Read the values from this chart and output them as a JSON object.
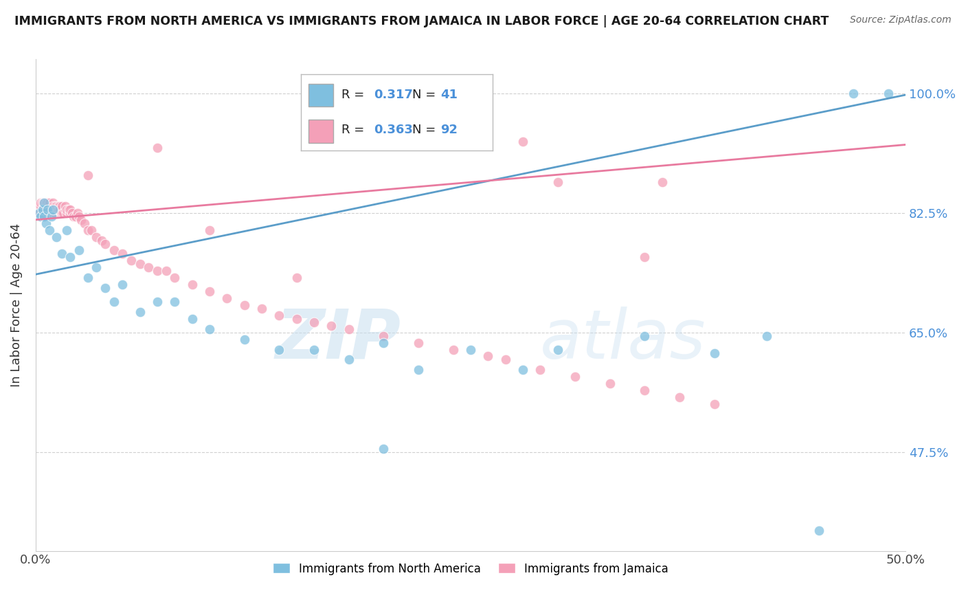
{
  "title": "IMMIGRANTS FROM NORTH AMERICA VS IMMIGRANTS FROM JAMAICA IN LABOR FORCE | AGE 20-64 CORRELATION CHART",
  "source": "Source: ZipAtlas.com",
  "ylabel": "In Labor Force | Age 20-64",
  "xlim": [
    0.0,
    0.5
  ],
  "ylim": [
    0.33,
    1.05
  ],
  "yticks": [
    0.475,
    0.65,
    0.825,
    1.0
  ],
  "ytick_labels": [
    "47.5%",
    "65.0%",
    "82.5%",
    "100.0%"
  ],
  "xticks": [
    0.0,
    0.1,
    0.2,
    0.3,
    0.4,
    0.5
  ],
  "xtick_labels": [
    "0.0%",
    "",
    "",
    "",
    "",
    "50.0%"
  ],
  "blue_R": 0.317,
  "blue_N": 41,
  "pink_R": 0.363,
  "pink_N": 92,
  "blue_color": "#7fbfdf",
  "pink_color": "#f4a0b8",
  "blue_line_color": "#5b9dc9",
  "pink_line_color": "#e87a9f",
  "legend_label_blue": "Immigrants from North America",
  "legend_label_pink": "Immigrants from Jamaica",
  "watermark_zip": "ZIP",
  "watermark_atlas": "atlas",
  "blue_line_x0": 0.0,
  "blue_line_y0": 0.735,
  "blue_line_x1": 0.5,
  "blue_line_y1": 0.998,
  "pink_line_x0": 0.0,
  "pink_line_x1": 0.5,
  "pink_line_y0": 0.815,
  "pink_line_y1": 0.925,
  "blue_x": [
    0.002,
    0.003,
    0.004,
    0.005,
    0.005,
    0.006,
    0.007,
    0.008,
    0.009,
    0.01,
    0.012,
    0.015,
    0.018,
    0.02,
    0.025,
    0.03,
    0.035,
    0.04,
    0.045,
    0.05,
    0.06,
    0.07,
    0.08,
    0.09,
    0.1,
    0.12,
    0.14,
    0.16,
    0.18,
    0.2,
    0.22,
    0.25,
    0.28,
    0.3,
    0.35,
    0.39,
    0.42,
    0.45,
    0.2,
    0.47,
    0.49
  ],
  "blue_y": [
    0.825,
    0.82,
    0.83,
    0.82,
    0.84,
    0.81,
    0.83,
    0.8,
    0.82,
    0.83,
    0.79,
    0.765,
    0.8,
    0.76,
    0.77,
    0.73,
    0.745,
    0.715,
    0.695,
    0.72,
    0.68,
    0.695,
    0.695,
    0.67,
    0.655,
    0.64,
    0.625,
    0.625,
    0.61,
    0.635,
    0.595,
    0.625,
    0.595,
    0.625,
    0.645,
    0.62,
    0.645,
    0.36,
    0.48,
    1.0,
    1.0
  ],
  "pink_x": [
    0.001,
    0.002,
    0.002,
    0.003,
    0.003,
    0.003,
    0.004,
    0.004,
    0.004,
    0.005,
    0.005,
    0.005,
    0.006,
    0.006,
    0.007,
    0.007,
    0.007,
    0.008,
    0.008,
    0.008,
    0.009,
    0.009,
    0.01,
    0.01,
    0.01,
    0.011,
    0.011,
    0.012,
    0.012,
    0.013,
    0.013,
    0.014,
    0.014,
    0.015,
    0.015,
    0.016,
    0.017,
    0.017,
    0.018,
    0.018,
    0.019,
    0.02,
    0.02,
    0.021,
    0.022,
    0.023,
    0.024,
    0.025,
    0.026,
    0.028,
    0.03,
    0.032,
    0.035,
    0.038,
    0.04,
    0.045,
    0.05,
    0.055,
    0.06,
    0.065,
    0.07,
    0.075,
    0.08,
    0.09,
    0.1,
    0.11,
    0.12,
    0.13,
    0.14,
    0.15,
    0.16,
    0.17,
    0.18,
    0.2,
    0.22,
    0.24,
    0.26,
    0.27,
    0.29,
    0.31,
    0.33,
    0.35,
    0.37,
    0.39,
    0.03,
    0.07,
    0.1,
    0.15,
    0.28,
    0.35,
    0.36,
    0.3
  ],
  "pink_y": [
    0.825,
    0.825,
    0.835,
    0.83,
    0.835,
    0.84,
    0.82,
    0.83,
    0.84,
    0.825,
    0.835,
    0.84,
    0.83,
    0.84,
    0.825,
    0.835,
    0.84,
    0.83,
    0.835,
    0.84,
    0.825,
    0.83,
    0.84,
    0.835,
    0.83,
    0.825,
    0.835,
    0.83,
    0.835,
    0.835,
    0.83,
    0.835,
    0.83,
    0.825,
    0.835,
    0.825,
    0.83,
    0.835,
    0.825,
    0.83,
    0.83,
    0.825,
    0.83,
    0.825,
    0.82,
    0.82,
    0.825,
    0.82,
    0.815,
    0.81,
    0.8,
    0.8,
    0.79,
    0.785,
    0.78,
    0.77,
    0.765,
    0.755,
    0.75,
    0.745,
    0.74,
    0.74,
    0.73,
    0.72,
    0.71,
    0.7,
    0.69,
    0.685,
    0.675,
    0.67,
    0.665,
    0.66,
    0.655,
    0.645,
    0.635,
    0.625,
    0.615,
    0.61,
    0.595,
    0.585,
    0.575,
    0.565,
    0.555,
    0.545,
    0.88,
    0.92,
    0.8,
    0.73,
    0.93,
    0.76,
    0.87,
    0.87
  ]
}
